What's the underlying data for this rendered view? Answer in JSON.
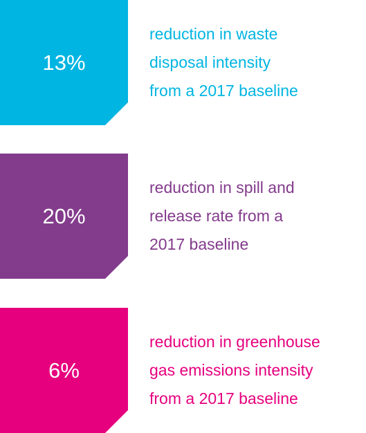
{
  "items": [
    {
      "value": "13%",
      "lines": [
        "reduction in waste",
        "disposal intensity",
        "from a 2017 baseline"
      ]
    },
    {
      "value": "20%",
      "lines": [
        "reduction in spill and",
        "release rate from a",
        "2017 baseline"
      ]
    },
    {
      "value": "6%",
      "lines": [
        "reduction in greenhouse",
        "gas emissions intensity",
        "from a 2017 baseline"
      ]
    }
  ]
}
